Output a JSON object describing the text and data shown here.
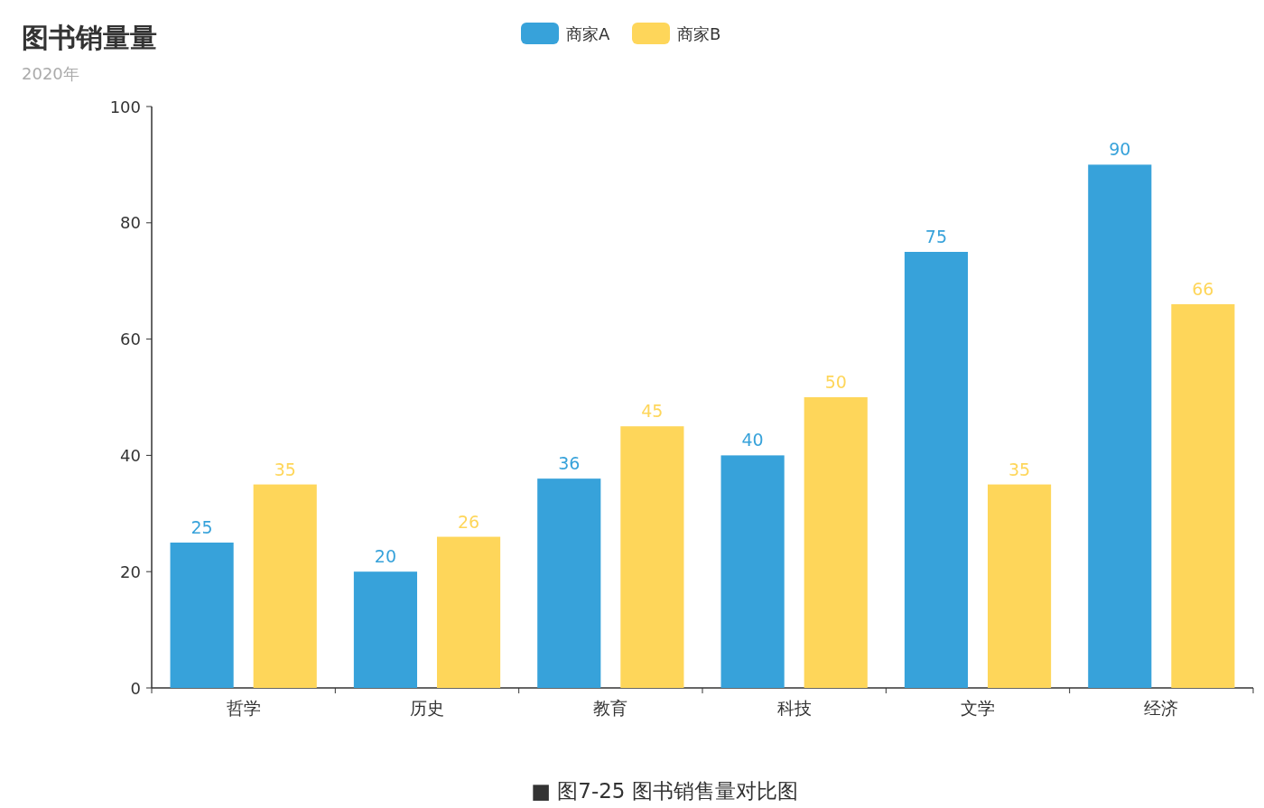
{
  "chart_data": {
    "type": "bar",
    "title": "图书销量量",
    "subtitle": "2020年",
    "categories": [
      "哲学",
      "历史",
      "教育",
      "科技",
      "文学",
      "经济"
    ],
    "series": [
      {
        "name": "商家A",
        "color": "#37a2da",
        "values": [
          25,
          20,
          36,
          40,
          75,
          90
        ]
      },
      {
        "name": "商家B",
        "color": "#fed65a",
        "values": [
          35,
          26,
          45,
          50,
          35,
          66
        ]
      }
    ],
    "ylim": [
      0,
      100
    ],
    "yticks": [
      0,
      20,
      40,
      60,
      80,
      100
    ],
    "data_labels": true,
    "legend": "top",
    "grid": false,
    "annotations": [
      "■ 图7-25 图书销售量对比图"
    ]
  }
}
